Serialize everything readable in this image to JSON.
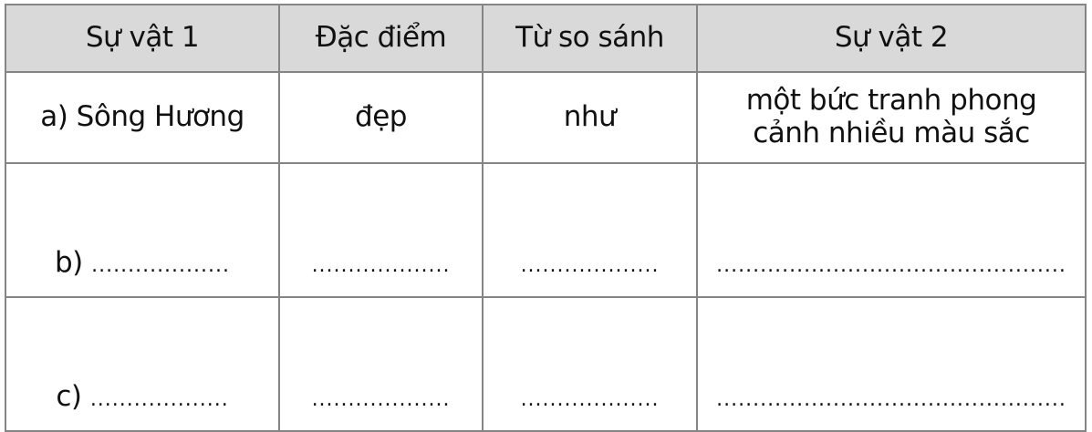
{
  "table": {
    "headers": [
      "Sự vật 1",
      "Đặc điểm",
      "Từ so sánh",
      "Sự vật 2"
    ],
    "rows": [
      {
        "label": "a) Sông Hương",
        "c2": "đẹp",
        "c3": "như",
        "c4": "một bức tranh phong cảnh nhiều màu sắc"
      },
      {
        "label": "b)",
        "c1dots": "...................",
        "c2": "...................",
        "c3": "...................",
        "c4": "................................................"
      },
      {
        "label": "c)",
        "c1dots": "...................",
        "c2": "...................",
        "c3": "...................",
        "c4": "................................................"
      }
    ]
  }
}
